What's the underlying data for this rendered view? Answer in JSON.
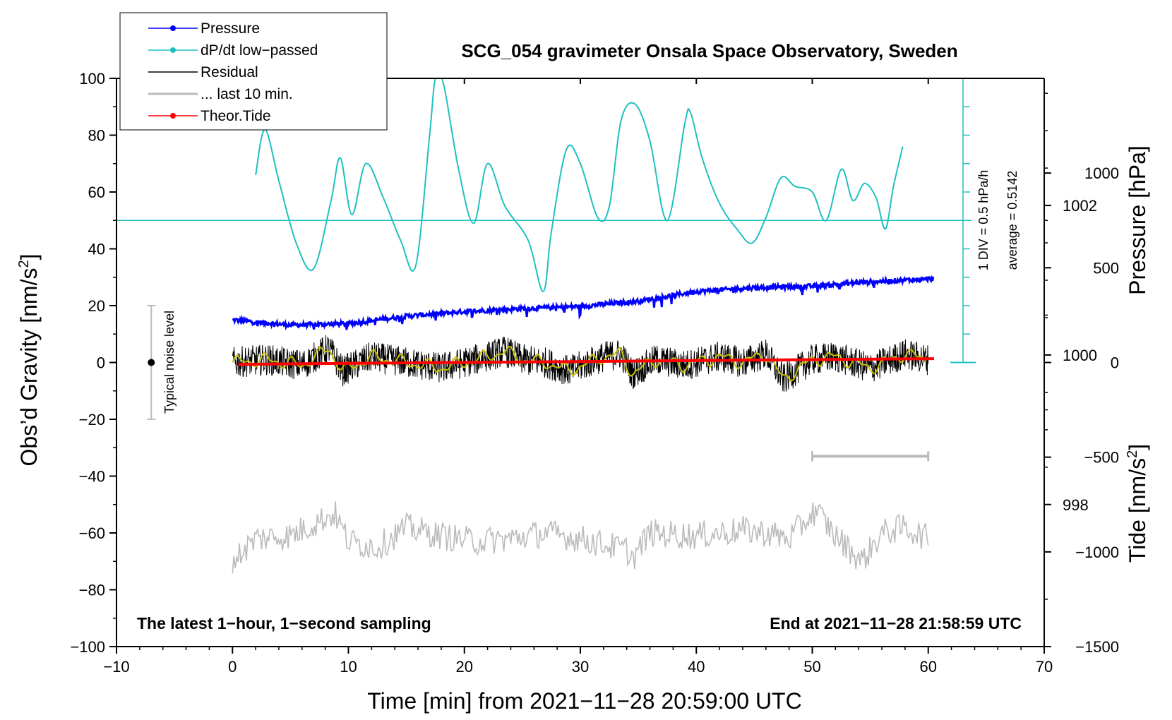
{
  "chart_data": {
    "type": "line",
    "title": "SCG_054 gravimeter Onsala Space Observatory, Sweden",
    "xlabel": "Time [min] from 2021−11−28 20:59:00 UTC",
    "ylabel_left": "Obs’d Gravity [nm/s²]",
    "ylabel_left_base": "Obs’d Gravity [nm/s",
    "ylabel_right_top": "Pressure [hPa]",
    "ylabel_right_bottom": "Tide [nm/s²]",
    "ylabel_right_bottom_base": "Tide [nm/s",
    "superscript": "2",
    "xlim": [
      -10,
      70
    ],
    "ylim": [
      -100,
      100
    ],
    "pressure_lim": [
      996.1,
      1003.7
    ],
    "tide_lim": [
      -1500,
      1500
    ],
    "x_ticks": [
      -10,
      0,
      10,
      20,
      30,
      40,
      50,
      60,
      70
    ],
    "x_tick_labels": [
      "−10",
      "0",
      "10",
      "20",
      "30",
      "40",
      "50",
      "60",
      "70"
    ],
    "y_ticks": [
      -100,
      -80,
      -60,
      -40,
      -20,
      0,
      20,
      40,
      60,
      80,
      100
    ],
    "y_tick_labels": [
      "−100",
      "−80",
      "−60",
      "−40",
      "−20",
      "0",
      "20",
      "40",
      "60",
      "80",
      "100"
    ],
    "pressure_ticks": [
      998,
      1000,
      1002
    ],
    "pressure_tick_labels": [
      "998",
      "1000",
      "1002"
    ],
    "tide_ticks": [
      -1500,
      -1000,
      -500,
      0,
      500,
      1000
    ],
    "tide_tick_labels": [
      "−1500",
      "−1000",
      "−500",
      "0",
      "500",
      "1000"
    ],
    "legend_position": "top-left",
    "legend": [
      {
        "label": "Pressure",
        "color": "#0000ff",
        "marker": true
      },
      {
        "label": "dP/dt low−passed",
        "color": "#20c0c0",
        "marker": true
      },
      {
        "label": "Residual",
        "color": "#000000",
        "marker": false
      },
      {
        "label": "... last 10 min.",
        "color": "#bbbbbb",
        "marker": false
      },
      {
        "label": "Theor.Tide",
        "color": "#ff0000",
        "marker": true
      }
    ],
    "notes": {
      "bottom_left": "The latest 1−hour, 1−second sampling",
      "bottom_right": "End at 2021−11−28 21:58:59 UTC",
      "noise": "Typical noise level",
      "div": "1 DIV = 0.5 hPa/h",
      "average": "average = 0.5142"
    },
    "noise_bar": {
      "x": -7,
      "center": 0,
      "min": -20,
      "max": 20
    },
    "last10_bar": {
      "x_start": 50,
      "x_end": 60,
      "y": -33
    },
    "dpdt_scale": {
      "x": 63,
      "baseline": 50,
      "top": 100,
      "bottom": 0
    },
    "series": [
      {
        "name": "Pressure",
        "units": "hPa",
        "color": "#0000ff",
        "x": [
          0,
          5,
          10,
          15,
          20,
          25,
          30,
          35,
          40,
          45,
          50,
          55,
          60.5
        ],
        "values": [
          1000.47,
          1000.4,
          1000.42,
          1000.52,
          1000.58,
          1000.62,
          1000.65,
          1000.72,
          1000.85,
          1000.9,
          1000.92,
          1000.98,
          1001.02
        ]
      },
      {
        "name": "dP/dt low-passed",
        "color": "#20c0c0",
        "x": [
          2,
          2.8,
          4,
          5.5,
          7,
          8.5,
          9.3,
          10.3,
          11.5,
          13,
          14.5,
          15.8,
          17,
          17.5,
          18.2,
          19.5,
          20.8,
          22,
          23.5,
          25.5,
          26.8,
          27.5,
          28.8,
          30,
          31.5,
          32.5,
          33.5,
          34.7,
          36,
          37.5,
          39,
          39.5,
          40.5,
          42,
          43.5,
          44.8,
          46,
          47.3,
          48.5,
          50,
          51.2,
          52.5,
          53.5,
          54.5,
          55.5,
          56.3,
          57,
          57.8
        ],
        "values": [
          66,
          82,
          64,
          42,
          33,
          57,
          72,
          52,
          70,
          58,
          43,
          34,
          80,
          100,
          98,
          68,
          49,
          70,
          55,
          43,
          25,
          46,
          75,
          70,
          51,
          55,
          85,
          91,
          78,
          50,
          84,
          88,
          72,
          56,
          47,
          42,
          51,
          65,
          62,
          60,
          50,
          68,
          57,
          63,
          58,
          47,
          62,
          76
        ]
      },
      {
        "name": "Residual",
        "color": "#000000",
        "x": [
          0,
          3,
          6,
          8.3,
          9.5,
          12,
          15,
          18,
          21,
          23.5,
          25,
          27,
          29,
          32,
          33.5,
          34.5,
          36.5,
          39,
          42,
          44,
          46,
          47.5,
          50,
          52,
          55,
          58,
          60
        ],
        "values": [
          0,
          1,
          -1,
          5,
          -3,
          2,
          0,
          -2,
          1,
          4,
          1,
          0,
          -3,
          2,
          3,
          -4,
          1,
          -1,
          2,
          0,
          3,
          -6,
          1,
          2,
          -2,
          3,
          1
        ]
      },
      {
        "name": "Residual smoothed",
        "color": "#c8c000",
        "x": [
          0,
          3,
          6,
          8.3,
          9.5,
          12,
          15,
          18,
          21,
          23.5,
          25,
          27,
          29,
          32,
          33.5,
          34.5,
          36.5,
          39,
          42,
          44,
          46,
          47.5,
          50,
          52,
          55,
          58,
          60
        ],
        "values": [
          0,
          1,
          -1,
          5,
          -3,
          2,
          0,
          -2,
          1,
          4,
          1,
          0,
          -3,
          2,
          3,
          -4,
          1,
          -1,
          2,
          0,
          3,
          -6,
          1,
          2,
          -2,
          3,
          1
        ]
      },
      {
        "name": "... last 10 min.",
        "color": "#bbbbbb",
        "x": [
          0,
          2,
          5,
          8.8,
          10,
          12.5,
          15,
          18,
          21,
          24,
          27,
          30,
          34,
          34.5,
          36,
          40,
          44,
          46,
          48,
          50.3,
          52,
          54.3,
          56,
          58,
          60
        ],
        "values": [
          -70,
          -62,
          -61,
          -53,
          -63,
          -65,
          -58,
          -61,
          -63,
          -62,
          -60,
          -62,
          -66,
          -69,
          -60,
          -61,
          -59,
          -60,
          -62,
          -52,
          -61,
          -70,
          -60,
          -58,
          -62
        ]
      },
      {
        "name": "Theor.Tide",
        "units": "nm/s²",
        "color": "#ff0000",
        "x": [
          0.5,
          10,
          20,
          30,
          40,
          50,
          60.5
        ],
        "values": [
          -10,
          -5,
          0,
          5,
          10,
          15,
          20
        ]
      }
    ]
  }
}
